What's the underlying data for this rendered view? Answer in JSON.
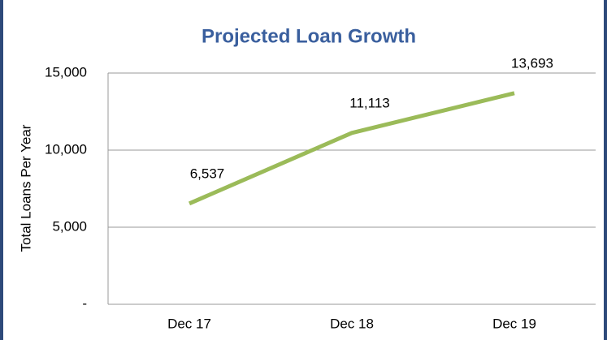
{
  "chart_data": {
    "type": "line",
    "title": "Projected Loan Growth",
    "y_label": "Total Loans Per Year",
    "categories": [
      "Dec 17",
      "Dec 18",
      "Dec 19"
    ],
    "values": [
      6537,
      11113,
      13693
    ],
    "value_labels": [
      "6,537",
      "11,113",
      "13,693"
    ],
    "color": "#9bbb59",
    "ylim": [
      0,
      15000
    ],
    "yticks": [
      {
        "value": 0,
        "label": "-"
      },
      {
        "value": 5000,
        "label": "5,000"
      },
      {
        "value": 10000,
        "label": "10,000"
      },
      {
        "value": 15000,
        "label": "15,000"
      }
    ],
    "grid": true
  }
}
